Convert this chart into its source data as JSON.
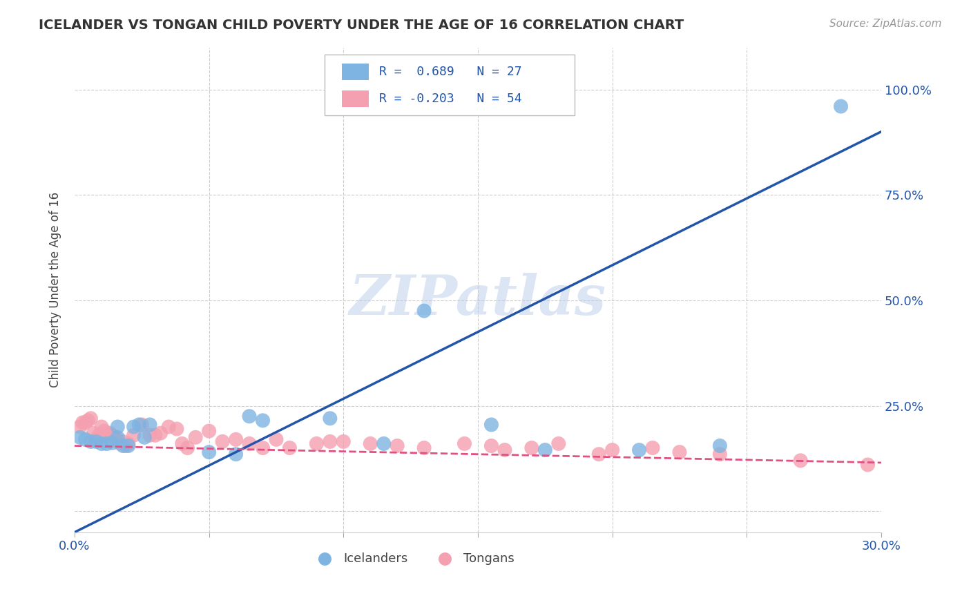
{
  "title": "ICELANDER VS TONGAN CHILD POVERTY UNDER THE AGE OF 16 CORRELATION CHART",
  "source": "Source: ZipAtlas.com",
  "ylabel_label": "Child Poverty Under the Age of 16",
  "xlim": [
    0.0,
    0.3
  ],
  "ylim": [
    -0.05,
    1.1
  ],
  "xticks": [
    0.0,
    0.05,
    0.1,
    0.15,
    0.2,
    0.25,
    0.3
  ],
  "xtick_labels": [
    "0.0%",
    "",
    "",
    "",
    "",
    "",
    "30.0%"
  ],
  "ytick_positions": [
    0.0,
    0.25,
    0.5,
    0.75,
    1.0
  ],
  "ytick_labels": [
    "",
    "25.0%",
    "50.0%",
    "75.0%",
    "100.0%"
  ],
  "grid_color": "#cccccc",
  "background_color": "#ffffff",
  "icelanders_color": "#7eb4e2",
  "tongans_color": "#f4a0b0",
  "icelanders_line_color": "#2255aa",
  "tongans_line_color": "#e05080",
  "R_icelanders": 0.689,
  "N_icelanders": 27,
  "R_tongans": -0.203,
  "N_tongans": 54,
  "watermark": "ZIPatlas",
  "legend_x_icelanders": "Icelanders",
  "legend_x_tongans": "Tongans",
  "icelanders_line_x0": 0.0,
  "icelanders_line_y0": -0.05,
  "icelanders_line_x1": 0.3,
  "icelanders_line_y1": 0.9,
  "tongans_line_x0": 0.0,
  "tongans_line_y0": 0.155,
  "tongans_line_x1": 0.3,
  "tongans_line_y1": 0.115,
  "icelanders_x": [
    0.002,
    0.004,
    0.006,
    0.008,
    0.01,
    0.012,
    0.014,
    0.016,
    0.016,
    0.018,
    0.02,
    0.022,
    0.024,
    0.026,
    0.028,
    0.05,
    0.06,
    0.065,
    0.07,
    0.095,
    0.115,
    0.13,
    0.155,
    0.175,
    0.21,
    0.24,
    0.285
  ],
  "icelanders_y": [
    0.175,
    0.17,
    0.165,
    0.165,
    0.16,
    0.16,
    0.162,
    0.175,
    0.2,
    0.155,
    0.155,
    0.2,
    0.205,
    0.175,
    0.205,
    0.14,
    0.135,
    0.225,
    0.215,
    0.22,
    0.16,
    0.475,
    0.205,
    0.145,
    0.145,
    0.155,
    0.96
  ],
  "tongans_x": [
    0.002,
    0.003,
    0.004,
    0.005,
    0.006,
    0.007,
    0.008,
    0.009,
    0.01,
    0.011,
    0.012,
    0.013,
    0.014,
    0.015,
    0.016,
    0.017,
    0.018,
    0.019,
    0.02,
    0.022,
    0.025,
    0.028,
    0.03,
    0.032,
    0.035,
    0.038,
    0.04,
    0.042,
    0.045,
    0.05,
    0.055,
    0.06,
    0.065,
    0.07,
    0.075,
    0.08,
    0.09,
    0.095,
    0.1,
    0.11,
    0.12,
    0.13,
    0.145,
    0.155,
    0.16,
    0.17,
    0.18,
    0.195,
    0.2,
    0.215,
    0.225,
    0.24,
    0.27,
    0.295
  ],
  "tongans_y": [
    0.2,
    0.21,
    0.21,
    0.215,
    0.22,
    0.185,
    0.17,
    0.18,
    0.2,
    0.19,
    0.18,
    0.185,
    0.18,
    0.175,
    0.168,
    0.16,
    0.165,
    0.155,
    0.16,
    0.18,
    0.205,
    0.18,
    0.18,
    0.185,
    0.2,
    0.195,
    0.16,
    0.15,
    0.175,
    0.19,
    0.165,
    0.17,
    0.16,
    0.15,
    0.17,
    0.15,
    0.16,
    0.165,
    0.165,
    0.16,
    0.155,
    0.15,
    0.16,
    0.155,
    0.145,
    0.15,
    0.16,
    0.135,
    0.145,
    0.15,
    0.14,
    0.135,
    0.12,
    0.11
  ]
}
